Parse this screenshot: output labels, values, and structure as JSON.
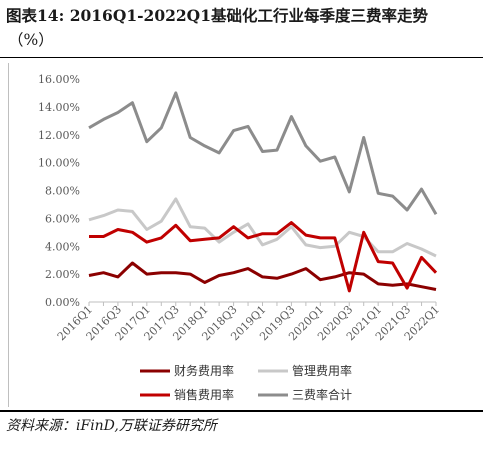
{
  "figure": {
    "title": "图表14:  2016Q1-2022Q1基础化工行业每季度三费率走势",
    "unit": "（%）",
    "source": "资料来源：iFinD,万联证券研究所"
  },
  "chart_data": {
    "type": "line",
    "title": "",
    "xlabel": "",
    "ylabel": "",
    "ylim": [
      0,
      16
    ],
    "y_ticks": [
      "0.00%",
      "2.00%",
      "4.00%",
      "6.00%",
      "8.00%",
      "10.00%",
      "12.00%",
      "14.00%",
      "16.00%"
    ],
    "x": [
      "2016Q1",
      "2016Q2",
      "2016Q3",
      "2016Q4",
      "2017Q1",
      "2017Q2",
      "2017Q3",
      "2017Q4",
      "2018Q1",
      "2018Q2",
      "2018Q3",
      "2018Q4",
      "2019Q1",
      "2019Q2",
      "2019Q3",
      "2019Q4",
      "2020Q1",
      "2020Q2",
      "2020Q3",
      "2020Q4",
      "2021Q1",
      "2021Q2",
      "2021Q3",
      "2021Q4",
      "2022Q1"
    ],
    "x_tick_labels": [
      "2016Q1",
      "2016Q3",
      "2017Q1",
      "2017Q3",
      "2018Q1",
      "2018Q3",
      "2019Q1",
      "2019Q3",
      "2020Q1",
      "2020Q3",
      "2021Q1",
      "2021Q3",
      "2022Q1"
    ],
    "grid": false,
    "legend_position": "bottom",
    "series": [
      {
        "name": "财务费用率",
        "color": "#8b0000",
        "width": 3,
        "values": [
          1.9,
          2.1,
          1.8,
          2.8,
          2.0,
          2.1,
          2.1,
          2.0,
          1.4,
          1.9,
          2.1,
          2.4,
          1.8,
          1.7,
          2.0,
          2.4,
          1.6,
          1.8,
          2.1,
          2.0,
          1.3,
          1.2,
          1.3,
          1.1,
          0.9
        ]
      },
      {
        "name": "管理费用率",
        "color": "#c8c8c8",
        "width": 3,
        "values": [
          5.9,
          6.2,
          6.6,
          6.5,
          5.2,
          5.8,
          7.4,
          5.4,
          5.3,
          4.3,
          5.0,
          5.6,
          4.1,
          4.5,
          5.4,
          4.1,
          3.9,
          4.0,
          5.0,
          4.7,
          3.6,
          3.6,
          4.2,
          3.8,
          3.3
        ]
      },
      {
        "name": "销售费用率",
        "color": "#c00000",
        "width": 3,
        "values": [
          4.7,
          4.7,
          5.2,
          5.0,
          4.3,
          4.6,
          5.5,
          4.4,
          4.5,
          4.6,
          5.4,
          4.6,
          4.9,
          4.9,
          5.7,
          4.8,
          4.6,
          4.6,
          0.8,
          5.0,
          2.9,
          2.8,
          1.0,
          3.2,
          2.1
        ]
      },
      {
        "name": "三费率合计",
        "color": "#8c8c8c",
        "width": 3,
        "values": [
          12.5,
          13.1,
          13.6,
          14.3,
          11.5,
          12.5,
          15.0,
          11.8,
          11.2,
          10.7,
          12.3,
          12.6,
          10.8,
          10.9,
          13.3,
          11.2,
          10.1,
          10.4,
          7.9,
          11.8,
          7.8,
          7.6,
          6.6,
          8.1,
          6.3
        ]
      }
    ]
  }
}
